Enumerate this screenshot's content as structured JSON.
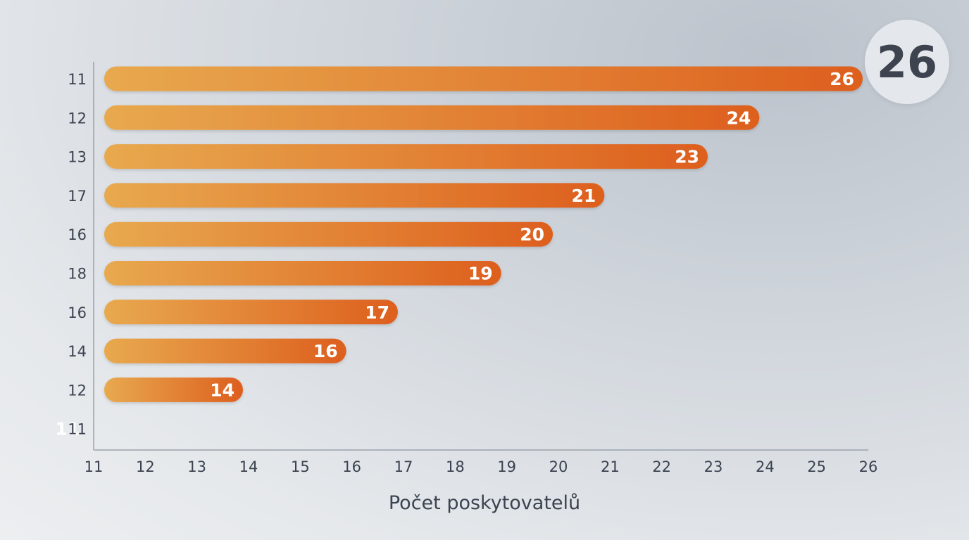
{
  "badge": {
    "value": "26"
  },
  "chart_data": {
    "type": "bar",
    "orientation": "horizontal",
    "categories": [
      "11",
      "12",
      "13",
      "17",
      "16",
      "18",
      "16",
      "14",
      "12",
      "11"
    ],
    "values": [
      26,
      24,
      23,
      21,
      20,
      19,
      17,
      16,
      14,
      11
    ],
    "xlabel": "Počet poskytovatelů",
    "xlim": [
      11,
      26
    ],
    "xticks": [
      "11",
      "12",
      "13",
      "14",
      "15",
      "16",
      "17",
      "18",
      "19",
      "20",
      "21",
      "22",
      "23",
      "24",
      "25",
      "26"
    ],
    "grid": false,
    "colors": {
      "bar_start": "#e8a94e",
      "bar_end": "#dd5f1e",
      "axis": "#9aa1aa",
      "text": "#3b4350"
    }
  }
}
